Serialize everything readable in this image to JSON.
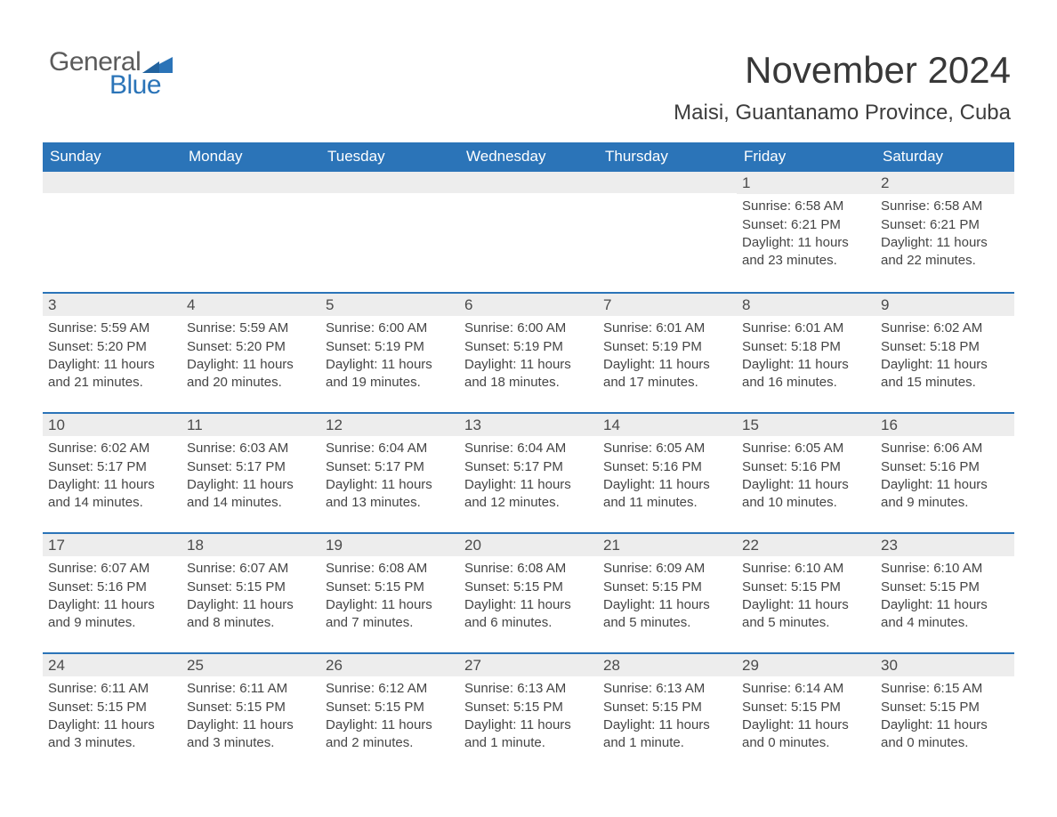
{
  "logo": {
    "general": "General",
    "blue": "Blue",
    "accent_color": "#2b74b8",
    "gray_color": "#5b5b5b"
  },
  "header": {
    "month_title": "November 2024",
    "location": "Maisi, Guantanamo Province, Cuba"
  },
  "calendar": {
    "header_bg": "#2b74b8",
    "header_fg": "#ffffff",
    "daynum_bg": "#ededed",
    "row_border_color": "#2b74b8",
    "text_color": "#454545",
    "font_family": "Arial, Helvetica, sans-serif",
    "title_fontsize": 42,
    "location_fontsize": 24,
    "header_fontsize": 17,
    "daynum_fontsize": 17,
    "body_fontsize": 15,
    "columns": [
      "Sunday",
      "Monday",
      "Tuesday",
      "Wednesday",
      "Thursday",
      "Friday",
      "Saturday"
    ],
    "rows": [
      [
        null,
        null,
        null,
        null,
        null,
        {
          "n": "1",
          "sunrise": "6:58 AM",
          "sunset": "6:21 PM",
          "day": "11 hours and 23 minutes."
        },
        {
          "n": "2",
          "sunrise": "6:58 AM",
          "sunset": "6:21 PM",
          "day": "11 hours and 22 minutes."
        }
      ],
      [
        {
          "n": "3",
          "sunrise": "5:59 AM",
          "sunset": "5:20 PM",
          "day": "11 hours and 21 minutes."
        },
        {
          "n": "4",
          "sunrise": "5:59 AM",
          "sunset": "5:20 PM",
          "day": "11 hours and 20 minutes."
        },
        {
          "n": "5",
          "sunrise": "6:00 AM",
          "sunset": "5:19 PM",
          "day": "11 hours and 19 minutes."
        },
        {
          "n": "6",
          "sunrise": "6:00 AM",
          "sunset": "5:19 PM",
          "day": "11 hours and 18 minutes."
        },
        {
          "n": "7",
          "sunrise": "6:01 AM",
          "sunset": "5:19 PM",
          "day": "11 hours and 17 minutes."
        },
        {
          "n": "8",
          "sunrise": "6:01 AM",
          "sunset": "5:18 PM",
          "day": "11 hours and 16 minutes."
        },
        {
          "n": "9",
          "sunrise": "6:02 AM",
          "sunset": "5:18 PM",
          "day": "11 hours and 15 minutes."
        }
      ],
      [
        {
          "n": "10",
          "sunrise": "6:02 AM",
          "sunset": "5:17 PM",
          "day": "11 hours and 14 minutes."
        },
        {
          "n": "11",
          "sunrise": "6:03 AM",
          "sunset": "5:17 PM",
          "day": "11 hours and 14 minutes."
        },
        {
          "n": "12",
          "sunrise": "6:04 AM",
          "sunset": "5:17 PM",
          "day": "11 hours and 13 minutes."
        },
        {
          "n": "13",
          "sunrise": "6:04 AM",
          "sunset": "5:17 PM",
          "day": "11 hours and 12 minutes."
        },
        {
          "n": "14",
          "sunrise": "6:05 AM",
          "sunset": "5:16 PM",
          "day": "11 hours and 11 minutes."
        },
        {
          "n": "15",
          "sunrise": "6:05 AM",
          "sunset": "5:16 PM",
          "day": "11 hours and 10 minutes."
        },
        {
          "n": "16",
          "sunrise": "6:06 AM",
          "sunset": "5:16 PM",
          "day": "11 hours and 9 minutes."
        }
      ],
      [
        {
          "n": "17",
          "sunrise": "6:07 AM",
          "sunset": "5:16 PM",
          "day": "11 hours and 9 minutes."
        },
        {
          "n": "18",
          "sunrise": "6:07 AM",
          "sunset": "5:15 PM",
          "day": "11 hours and 8 minutes."
        },
        {
          "n": "19",
          "sunrise": "6:08 AM",
          "sunset": "5:15 PM",
          "day": "11 hours and 7 minutes."
        },
        {
          "n": "20",
          "sunrise": "6:08 AM",
          "sunset": "5:15 PM",
          "day": "11 hours and 6 minutes."
        },
        {
          "n": "21",
          "sunrise": "6:09 AM",
          "sunset": "5:15 PM",
          "day": "11 hours and 5 minutes."
        },
        {
          "n": "22",
          "sunrise": "6:10 AM",
          "sunset": "5:15 PM",
          "day": "11 hours and 5 minutes."
        },
        {
          "n": "23",
          "sunrise": "6:10 AM",
          "sunset": "5:15 PM",
          "day": "11 hours and 4 minutes."
        }
      ],
      [
        {
          "n": "24",
          "sunrise": "6:11 AM",
          "sunset": "5:15 PM",
          "day": "11 hours and 3 minutes."
        },
        {
          "n": "25",
          "sunrise": "6:11 AM",
          "sunset": "5:15 PM",
          "day": "11 hours and 3 minutes."
        },
        {
          "n": "26",
          "sunrise": "6:12 AM",
          "sunset": "5:15 PM",
          "day": "11 hours and 2 minutes."
        },
        {
          "n": "27",
          "sunrise": "6:13 AM",
          "sunset": "5:15 PM",
          "day": "11 hours and 1 minute."
        },
        {
          "n": "28",
          "sunrise": "6:13 AM",
          "sunset": "5:15 PM",
          "day": "11 hours and 1 minute."
        },
        {
          "n": "29",
          "sunrise": "6:14 AM",
          "sunset": "5:15 PM",
          "day": "11 hours and 0 minutes."
        },
        {
          "n": "30",
          "sunrise": "6:15 AM",
          "sunset": "5:15 PM",
          "day": "11 hours and 0 minutes."
        }
      ]
    ],
    "labels": {
      "sunrise": "Sunrise: ",
      "sunset": "Sunset: ",
      "daylight": "Daylight: "
    }
  }
}
